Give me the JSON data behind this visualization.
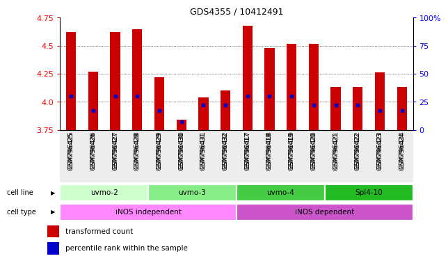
{
  "title": "GDS4355 / 10412491",
  "samples": [
    "GSM796425",
    "GSM796426",
    "GSM796427",
    "GSM796428",
    "GSM796429",
    "GSM796430",
    "GSM796431",
    "GSM796432",
    "GSM796417",
    "GSM796418",
    "GSM796419",
    "GSM796420",
    "GSM796421",
    "GSM796422",
    "GSM796423",
    "GSM796424"
  ],
  "transformed_count": [
    4.62,
    4.27,
    4.62,
    4.65,
    4.22,
    3.84,
    4.04,
    4.1,
    4.68,
    4.48,
    4.52,
    4.52,
    4.13,
    4.13,
    4.26,
    4.13
  ],
  "percentile_rank": [
    30,
    17,
    30,
    30,
    17,
    7,
    22,
    22,
    30,
    30,
    30,
    22,
    22,
    22,
    17,
    17
  ],
  "ymin": 3.75,
  "ymax": 4.75,
  "yticks": [
    3.75,
    4.0,
    4.25,
    4.5,
    4.75
  ],
  "right_yticks": [
    0,
    25,
    50,
    75,
    100
  ],
  "bar_color": "#cc0000",
  "dot_color": "#0000cc",
  "cell_lines": [
    {
      "label": "uvmo-2",
      "start": 0,
      "end": 4,
      "color": "#ccffcc"
    },
    {
      "label": "uvmo-3",
      "start": 4,
      "end": 8,
      "color": "#88ee88"
    },
    {
      "label": "uvmo-4",
      "start": 8,
      "end": 12,
      "color": "#44cc44"
    },
    {
      "label": "Spl4-10",
      "start": 12,
      "end": 16,
      "color": "#22bb22"
    }
  ],
  "cell_types": [
    {
      "label": "iNOS independent",
      "start": 0,
      "end": 8,
      "color": "#ff88ff"
    },
    {
      "label": "iNOS dependent",
      "start": 8,
      "end": 16,
      "color": "#cc55cc"
    }
  ],
  "legend_bar_label": "transformed count",
  "legend_dot_label": "percentile rank within the sample",
  "bar_color_legend": "#cc0000",
  "dot_color_legend": "#0000cc"
}
